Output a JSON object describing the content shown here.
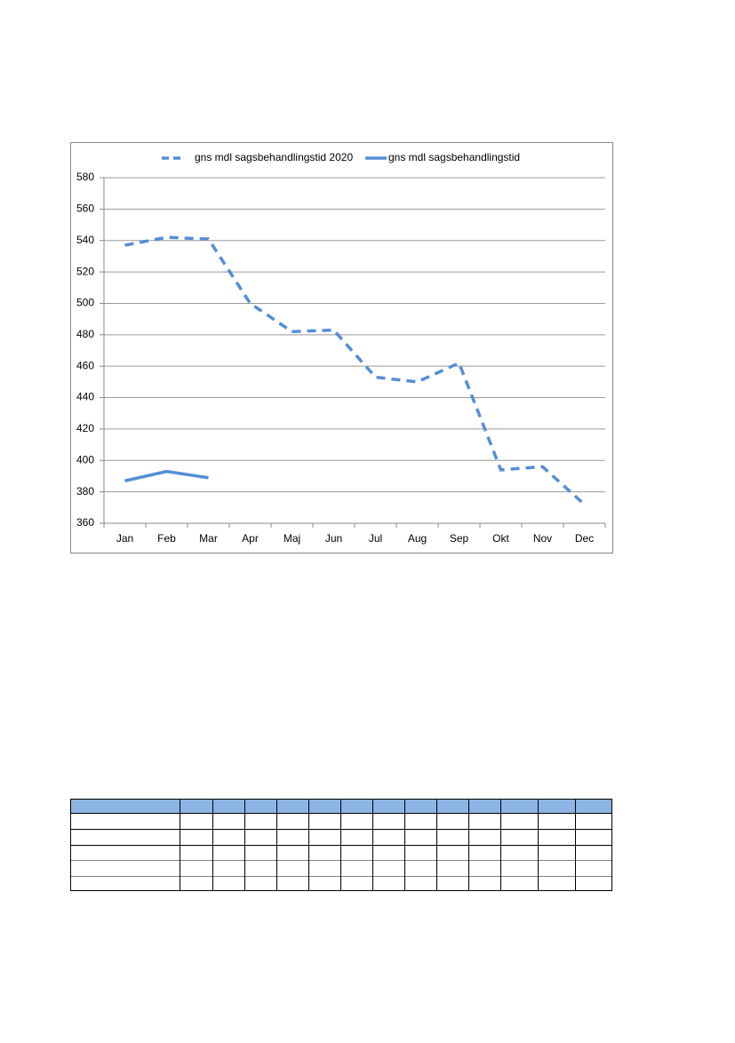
{
  "chart_data": {
    "type": "line",
    "categories": [
      "Jan",
      "Feb",
      "Mar",
      "Apr",
      "Maj",
      "Jun",
      "Jul",
      "Aug",
      "Sep",
      "Okt",
      "Nov",
      "Dec"
    ],
    "series": [
      {
        "name": "gns mdl sagsbehandlingstid 2020",
        "color": "#558ed5",
        "dashed": true,
        "values": [
          537,
          542,
          541,
          500,
          482,
          483,
          453,
          450,
          462,
          394,
          396,
          372
        ]
      },
      {
        "name": "gns mdl sagsbehandlingstid",
        "color": "#558ed5",
        "dashed": false,
        "values": [
          387,
          393,
          389,
          null,
          null,
          null,
          null,
          null,
          null,
          null,
          null,
          null
        ]
      }
    ],
    "ylim": [
      360,
      580
    ],
    "yticks": [
      360,
      380,
      400,
      420,
      440,
      460,
      480,
      500,
      520,
      540,
      560,
      580
    ],
    "grid": true,
    "legend": "top"
  }
}
